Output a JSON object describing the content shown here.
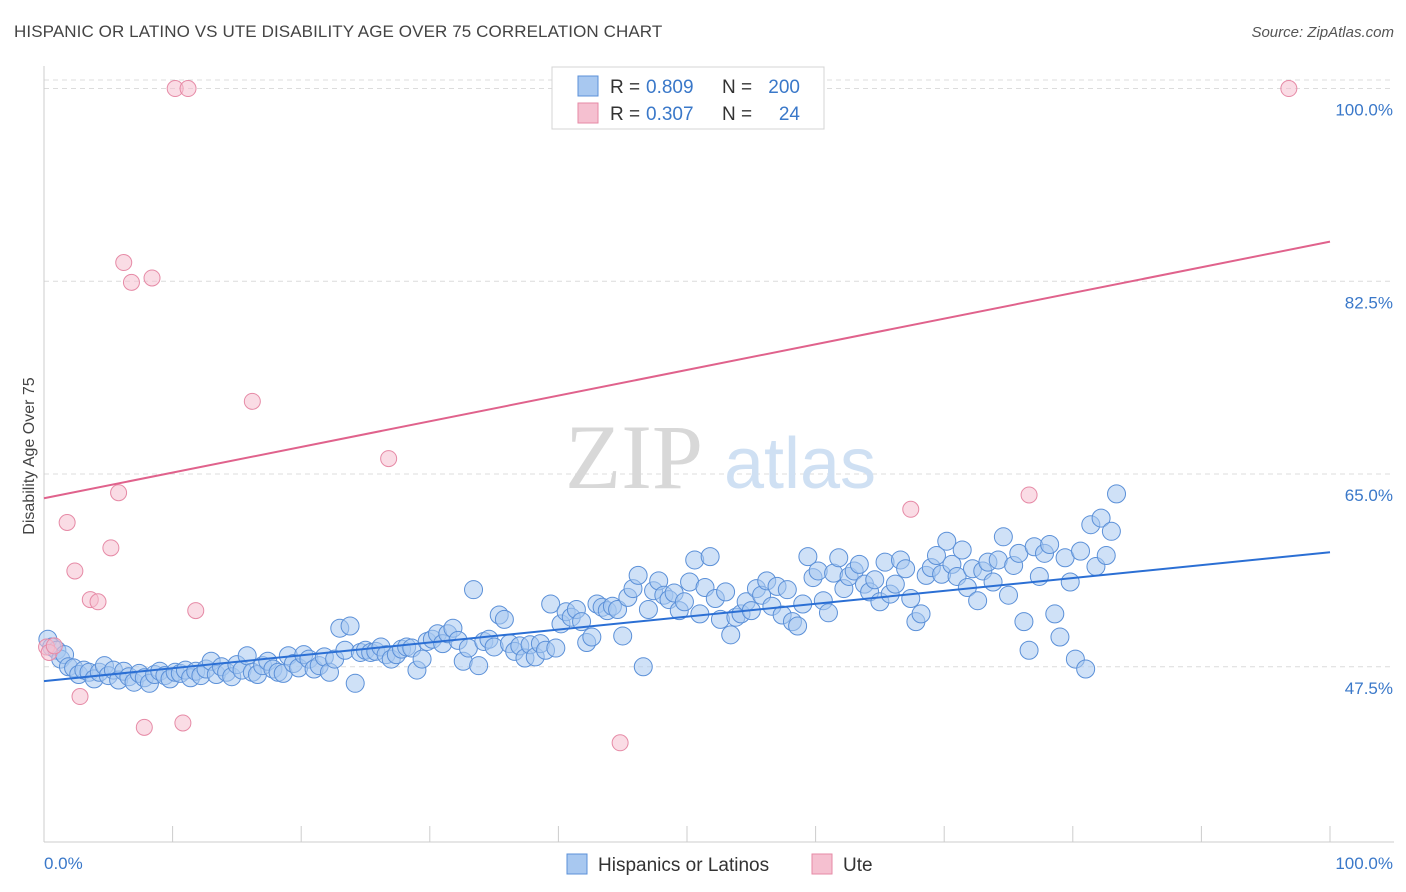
{
  "title": "HISPANIC OR LATINO VS UTE DISABILITY AGE OVER 75 CORRELATION CHART",
  "source": "Source: ZipAtlas.com",
  "watermark": {
    "zip": "ZIP",
    "atlas": "atlas"
  },
  "colors": {
    "blue_fill": "#a8c8f0",
    "blue_stroke": "#5b90d8",
    "blue_line": "#2b6fd4",
    "pink_fill": "#f5c0d0",
    "pink_stroke": "#e68aa6",
    "pink_line": "#e0628c",
    "tick_text": "#3a78c9",
    "grid": "#dcdcdc"
  },
  "legend": {
    "rows": [
      {
        "r_label": "R =",
        "r_value": "0.809",
        "n_label": "N =",
        "n_value": "200"
      },
      {
        "r_label": "R =",
        "r_value": "0.307",
        "n_label": "N =",
        "n_value": "24"
      }
    ]
  },
  "bottom_legend": [
    "Hispanics or Latinos",
    "Ute"
  ],
  "chart_data": {
    "type": "scatter",
    "title": "HISPANIC OR LATINO VS UTE DISABILITY AGE OVER 75 CORRELATION CHART",
    "xlabel": "",
    "ylabel": "Disability Age Over 75",
    "xlim": [
      0,
      100
    ],
    "ylim": [
      32.5,
      101.5
    ],
    "x_tick_labels": [
      "0.0%",
      "100.0%"
    ],
    "y_ticks": [
      47.5,
      65.0,
      82.5,
      100.0
    ],
    "y_tick_labels": [
      "47.5%",
      "65.0%",
      "82.5%",
      "100.0%"
    ],
    "grid": "horizontal dashed",
    "legend_position": "top-center",
    "series": [
      {
        "name": "Hispanics or Latinos",
        "R": 0.809,
        "N": 200,
        "trend": {
          "x": [
            0,
            100
          ],
          "y": [
            46.2,
            57.9
          ]
        },
        "points": [
          [
            0.3,
            50.0
          ],
          [
            0.6,
            49.3
          ],
          [
            1.0,
            49.0
          ],
          [
            1.3,
            48.2
          ],
          [
            1.6,
            48.6
          ],
          [
            1.9,
            47.5
          ],
          [
            2.3,
            47.4
          ],
          [
            2.7,
            46.8
          ],
          [
            3.1,
            47.2
          ],
          [
            3.5,
            47.0
          ],
          [
            3.9,
            46.4
          ],
          [
            4.3,
            47.0
          ],
          [
            4.7,
            47.6
          ],
          [
            5.0,
            46.7
          ],
          [
            5.4,
            47.2
          ],
          [
            5.8,
            46.3
          ],
          [
            6.2,
            47.1
          ],
          [
            6.6,
            46.6
          ],
          [
            7.0,
            46.1
          ],
          [
            7.4,
            46.9
          ],
          [
            7.8,
            46.5
          ],
          [
            8.2,
            46.0
          ],
          [
            8.6,
            46.8
          ],
          [
            9.0,
            47.1
          ],
          [
            9.4,
            46.7
          ],
          [
            9.8,
            46.4
          ],
          [
            10.2,
            47.0
          ],
          [
            10.6,
            46.9
          ],
          [
            11.0,
            47.2
          ],
          [
            11.4,
            46.5
          ],
          [
            11.8,
            47.1
          ],
          [
            12.2,
            46.7
          ],
          [
            12.6,
            47.3
          ],
          [
            13.0,
            48.0
          ],
          [
            13.4,
            46.8
          ],
          [
            13.8,
            47.5
          ],
          [
            14.2,
            47.0
          ],
          [
            14.6,
            46.6
          ],
          [
            15.0,
            47.7
          ],
          [
            15.4,
            47.2
          ],
          [
            15.8,
            48.5
          ],
          [
            16.2,
            47.0
          ],
          [
            16.6,
            46.8
          ],
          [
            17.0,
            47.6
          ],
          [
            17.4,
            48.0
          ],
          [
            17.8,
            47.3
          ],
          [
            18.2,
            47.0
          ],
          [
            18.6,
            46.9
          ],
          [
            19.0,
            48.5
          ],
          [
            19.4,
            47.8
          ],
          [
            19.8,
            47.4
          ],
          [
            20.2,
            48.6
          ],
          [
            20.6,
            48.2
          ],
          [
            21.0,
            47.3
          ],
          [
            21.4,
            47.6
          ],
          [
            21.8,
            48.4
          ],
          [
            22.2,
            47.0
          ],
          [
            22.6,
            48.2
          ],
          [
            23.0,
            51.0
          ],
          [
            23.4,
            49.0
          ],
          [
            23.8,
            51.2
          ],
          [
            24.2,
            46.0
          ],
          [
            24.6,
            48.8
          ],
          [
            25.0,
            49.0
          ],
          [
            25.4,
            48.8
          ],
          [
            25.8,
            48.9
          ],
          [
            26.2,
            49.3
          ],
          [
            26.6,
            48.6
          ],
          [
            27.0,
            48.2
          ],
          [
            27.4,
            48.6
          ],
          [
            27.8,
            49.1
          ],
          [
            28.2,
            49.3
          ],
          [
            28.6,
            49.2
          ],
          [
            29.0,
            47.2
          ],
          [
            29.4,
            48.2
          ],
          [
            29.8,
            49.8
          ],
          [
            30.2,
            50.0
          ],
          [
            30.6,
            50.5
          ],
          [
            31.0,
            49.6
          ],
          [
            31.4,
            50.5
          ],
          [
            31.8,
            51.0
          ],
          [
            32.2,
            49.9
          ],
          [
            32.6,
            48.0
          ],
          [
            33.0,
            49.2
          ],
          [
            33.4,
            54.5
          ],
          [
            33.8,
            47.6
          ],
          [
            34.2,
            49.8
          ],
          [
            34.6,
            50.0
          ],
          [
            35.0,
            49.3
          ],
          [
            35.4,
            52.2
          ],
          [
            35.8,
            51.8
          ],
          [
            36.2,
            49.6
          ],
          [
            36.6,
            48.9
          ],
          [
            37.0,
            49.4
          ],
          [
            37.4,
            48.3
          ],
          [
            37.8,
            49.5
          ],
          [
            38.2,
            48.4
          ],
          [
            38.6,
            49.6
          ],
          [
            39.0,
            49.0
          ],
          [
            39.4,
            53.2
          ],
          [
            39.8,
            49.2
          ],
          [
            40.2,
            51.4
          ],
          [
            40.6,
            52.5
          ],
          [
            41.0,
            52.0
          ],
          [
            41.4,
            52.7
          ],
          [
            41.8,
            51.6
          ],
          [
            42.2,
            49.7
          ],
          [
            42.6,
            50.2
          ],
          [
            43.0,
            53.2
          ],
          [
            43.4,
            52.9
          ],
          [
            43.8,
            52.6
          ],
          [
            44.2,
            53.0
          ],
          [
            44.6,
            52.7
          ],
          [
            45.0,
            50.3
          ],
          [
            45.4,
            53.8
          ],
          [
            45.8,
            54.6
          ],
          [
            46.2,
            55.8
          ],
          [
            46.6,
            47.5
          ],
          [
            47.0,
            52.7
          ],
          [
            47.4,
            54.4
          ],
          [
            47.8,
            55.3
          ],
          [
            48.2,
            54.0
          ],
          [
            48.6,
            53.6
          ],
          [
            49.0,
            54.2
          ],
          [
            49.4,
            52.6
          ],
          [
            49.8,
            53.4
          ],
          [
            50.2,
            55.2
          ],
          [
            50.6,
            57.2
          ],
          [
            51.0,
            52.3
          ],
          [
            51.4,
            54.7
          ],
          [
            51.8,
            57.5
          ],
          [
            52.2,
            53.7
          ],
          [
            52.6,
            51.8
          ],
          [
            53.0,
            54.3
          ],
          [
            53.4,
            50.4
          ],
          [
            53.8,
            52.0
          ],
          [
            54.2,
            52.3
          ],
          [
            54.6,
            53.4
          ],
          [
            55.0,
            52.6
          ],
          [
            55.4,
            54.6
          ],
          [
            55.8,
            54.0
          ],
          [
            56.2,
            55.3
          ],
          [
            56.6,
            53.0
          ],
          [
            57.0,
            54.8
          ],
          [
            57.4,
            52.2
          ],
          [
            57.8,
            54.5
          ],
          [
            58.2,
            51.6
          ],
          [
            58.6,
            51.2
          ],
          [
            59.0,
            53.2
          ],
          [
            59.4,
            57.5
          ],
          [
            59.8,
            55.6
          ],
          [
            60.2,
            56.2
          ],
          [
            60.6,
            53.5
          ],
          [
            61.0,
            52.4
          ],
          [
            61.4,
            56.0
          ],
          [
            61.8,
            57.4
          ],
          [
            62.2,
            54.6
          ],
          [
            62.6,
            55.7
          ],
          [
            63.0,
            56.2
          ],
          [
            63.4,
            56.8
          ],
          [
            63.8,
            55.0
          ],
          [
            64.2,
            54.3
          ],
          [
            64.6,
            55.4
          ],
          [
            65.0,
            53.4
          ],
          [
            65.4,
            57.0
          ],
          [
            65.8,
            54.1
          ],
          [
            66.2,
            55.0
          ],
          [
            66.6,
            57.2
          ],
          [
            67.0,
            56.4
          ],
          [
            67.4,
            53.7
          ],
          [
            67.8,
            51.6
          ],
          [
            68.2,
            52.3
          ],
          [
            68.6,
            55.8
          ],
          [
            69.0,
            56.5
          ],
          [
            69.4,
            57.6
          ],
          [
            69.8,
            55.9
          ],
          [
            70.2,
            58.9
          ],
          [
            70.6,
            56.8
          ],
          [
            71.0,
            55.7
          ],
          [
            71.4,
            58.1
          ],
          [
            71.8,
            54.7
          ],
          [
            72.2,
            56.4
          ],
          [
            72.6,
            53.5
          ],
          [
            73.0,
            56.2
          ],
          [
            73.4,
            57.0
          ],
          [
            73.8,
            55.2
          ],
          [
            74.2,
            57.2
          ],
          [
            74.6,
            59.3
          ],
          [
            75.0,
            54.0
          ],
          [
            75.4,
            56.7
          ],
          [
            75.8,
            57.8
          ],
          [
            76.2,
            51.6
          ],
          [
            76.6,
            49.0
          ],
          [
            77.0,
            58.4
          ],
          [
            77.4,
            55.7
          ],
          [
            77.8,
            57.8
          ],
          [
            78.2,
            58.6
          ],
          [
            78.6,
            52.3
          ],
          [
            79.0,
            50.2
          ],
          [
            79.4,
            57.4
          ],
          [
            79.8,
            55.2
          ],
          [
            80.2,
            48.2
          ],
          [
            80.6,
            58.0
          ],
          [
            81.0,
            47.3
          ],
          [
            81.4,
            60.4
          ],
          [
            81.8,
            56.6
          ],
          [
            82.2,
            61.0
          ],
          [
            82.6,
            57.6
          ],
          [
            83.0,
            59.8
          ],
          [
            83.4,
            63.2
          ]
        ]
      },
      {
        "name": "Ute",
        "R": 0.307,
        "N": 24,
        "trend": {
          "x": [
            0,
            100
          ],
          "y": [
            62.8,
            86.1
          ]
        },
        "points": [
          [
            0.2,
            49.3
          ],
          [
            0.4,
            48.8
          ],
          [
            0.8,
            49.4
          ],
          [
            1.8,
            60.6
          ],
          [
            2.4,
            56.2
          ],
          [
            2.8,
            44.8
          ],
          [
            3.6,
            53.6
          ],
          [
            4.2,
            53.4
          ],
          [
            5.2,
            58.3
          ],
          [
            5.8,
            63.3
          ],
          [
            6.2,
            84.2
          ],
          [
            6.8,
            82.4
          ],
          [
            7.8,
            42.0
          ],
          [
            8.4,
            82.8
          ],
          [
            10.2,
            100.0
          ],
          [
            11.2,
            100.0
          ],
          [
            10.8,
            42.4
          ],
          [
            11.8,
            52.6
          ],
          [
            16.2,
            71.6
          ],
          [
            26.8,
            66.4
          ],
          [
            44.8,
            40.6
          ],
          [
            67.4,
            61.8
          ],
          [
            76.6,
            63.1
          ],
          [
            96.8,
            100.0
          ]
        ]
      }
    ]
  }
}
